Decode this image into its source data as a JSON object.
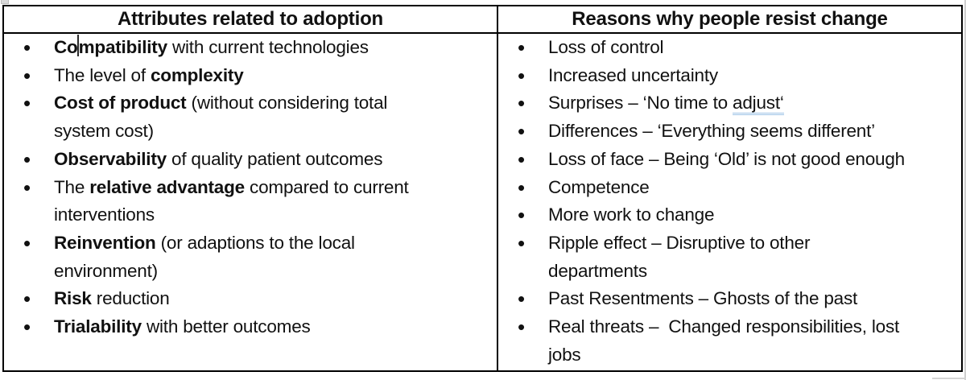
{
  "colors": {
    "border": "#000000",
    "text": "#111111",
    "spellcheck_underline": "#9dc3e6"
  },
  "bullet_char": "•",
  "columns": [
    {
      "header": "Attributes related to adoption",
      "items": [
        {
          "lines": [
            [
              {
                "t": "Co",
                "b": 1
              },
              {
                "caret": 1
              },
              {
                "t": "mpatibility",
                "b": 1
              },
              {
                "t": " with current technologies"
              }
            ]
          ]
        },
        {
          "lines": [
            [
              {
                "t": "The level of "
              },
              {
                "t": "complexity",
                "b": 1
              }
            ]
          ]
        },
        {
          "lines": [
            [
              {
                "t": "Cost of product",
                "b": 1
              },
              {
                "t": " (without considering total"
              }
            ],
            [
              {
                "t": "system cost)"
              }
            ]
          ]
        },
        {
          "lines": [
            [
              {
                "t": "Observability",
                "b": 1
              },
              {
                "t": " of quality patient outcomes"
              }
            ]
          ]
        },
        {
          "lines": [
            [
              {
                "t": "The "
              },
              {
                "t": "relative advantage",
                "b": 1
              },
              {
                "t": " compared to current"
              }
            ],
            [
              {
                "t": "interventions"
              }
            ]
          ]
        },
        {
          "lines": [
            [
              {
                "t": "Reinvention",
                "b": 1
              },
              {
                "t": " (or adaptions to the local"
              }
            ],
            [
              {
                "t": "environment)"
              }
            ]
          ]
        },
        {
          "lines": [
            [
              {
                "t": "Risk",
                "b": 1
              },
              {
                "t": " reduction"
              }
            ]
          ]
        },
        {
          "lines": [
            [
              {
                "t": "Trialability",
                "b": 1
              },
              {
                "t": " with better outcomes"
              }
            ]
          ]
        }
      ]
    },
    {
      "header": "Reasons why people resist change",
      "items": [
        {
          "lines": [
            [
              {
                "t": "Loss of control"
              }
            ]
          ]
        },
        {
          "lines": [
            [
              {
                "t": "Increased uncertainty"
              }
            ]
          ]
        },
        {
          "lines": [
            [
              {
                "t": "Surprises – ‘No time to "
              },
              {
                "t": "adjust‘",
                "u": 1
              }
            ]
          ]
        },
        {
          "lines": [
            [
              {
                "t": "Differences – ‘Everything seems different’"
              }
            ]
          ]
        },
        {
          "lines": [
            [
              {
                "t": "Loss of face – Being ‘Old’ is not good enough"
              }
            ]
          ]
        },
        {
          "lines": [
            [
              {
                "t": "Competence"
              }
            ]
          ]
        },
        {
          "lines": [
            [
              {
                "t": "More work to change"
              }
            ]
          ]
        },
        {
          "lines": [
            [
              {
                "t": "Ripple effect – Disruptive to other"
              }
            ],
            [
              {
                "t": "departments"
              }
            ]
          ]
        },
        {
          "lines": [
            [
              {
                "t": "Past Resentments – Ghosts of the past"
              }
            ]
          ]
        },
        {
          "lines": [
            [
              {
                "t": "Real threats –  Changed responsibilities, lost"
              }
            ],
            [
              {
                "t": "jobs"
              }
            ]
          ]
        }
      ]
    }
  ]
}
